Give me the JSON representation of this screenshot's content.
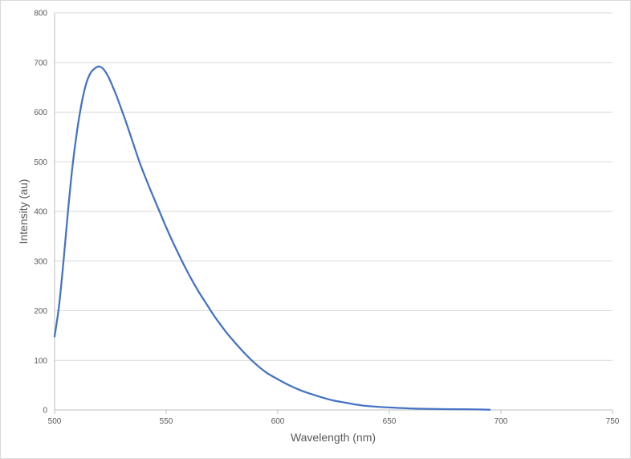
{
  "chart_data": {
    "type": "line",
    "title": "",
    "xlabel": "Wavelength (nm)",
    "ylabel": "Intensity (au)",
    "xlim": [
      500,
      750
    ],
    "ylim": [
      0,
      800
    ],
    "xticks": [
      500,
      550,
      600,
      650,
      700,
      750
    ],
    "yticks": [
      0,
      100,
      200,
      300,
      400,
      500,
      600,
      700,
      800
    ],
    "grid": "horizontal",
    "legend": "none",
    "series": [
      {
        "color": "#4472c4",
        "x": [
          500,
          502,
          504,
          506,
          508,
          510,
          512,
          514,
          516,
          518,
          520,
          522,
          524,
          526,
          528,
          530,
          532,
          535,
          538,
          541,
          544,
          547,
          550,
          553,
          556,
          559,
          562,
          565,
          568,
          571,
          574,
          577,
          580,
          585,
          590,
          595,
          600,
          605,
          610,
          615,
          620,
          625,
          630,
          635,
          640,
          650,
          660,
          670,
          680,
          690,
          695
        ],
        "y": [
          148,
          210,
          300,
          400,
          490,
          560,
          615,
          655,
          678,
          688,
          692,
          686,
          672,
          652,
          630,
          605,
          580,
          540,
          500,
          465,
          432,
          400,
          368,
          338,
          310,
          283,
          258,
          235,
          214,
          193,
          174,
          156,
          140,
          115,
          93,
          75,
          62,
          50,
          40,
          32,
          25,
          19,
          15,
          11,
          8,
          5,
          3,
          2,
          1.5,
          1,
          0.5
        ]
      }
    ]
  }
}
